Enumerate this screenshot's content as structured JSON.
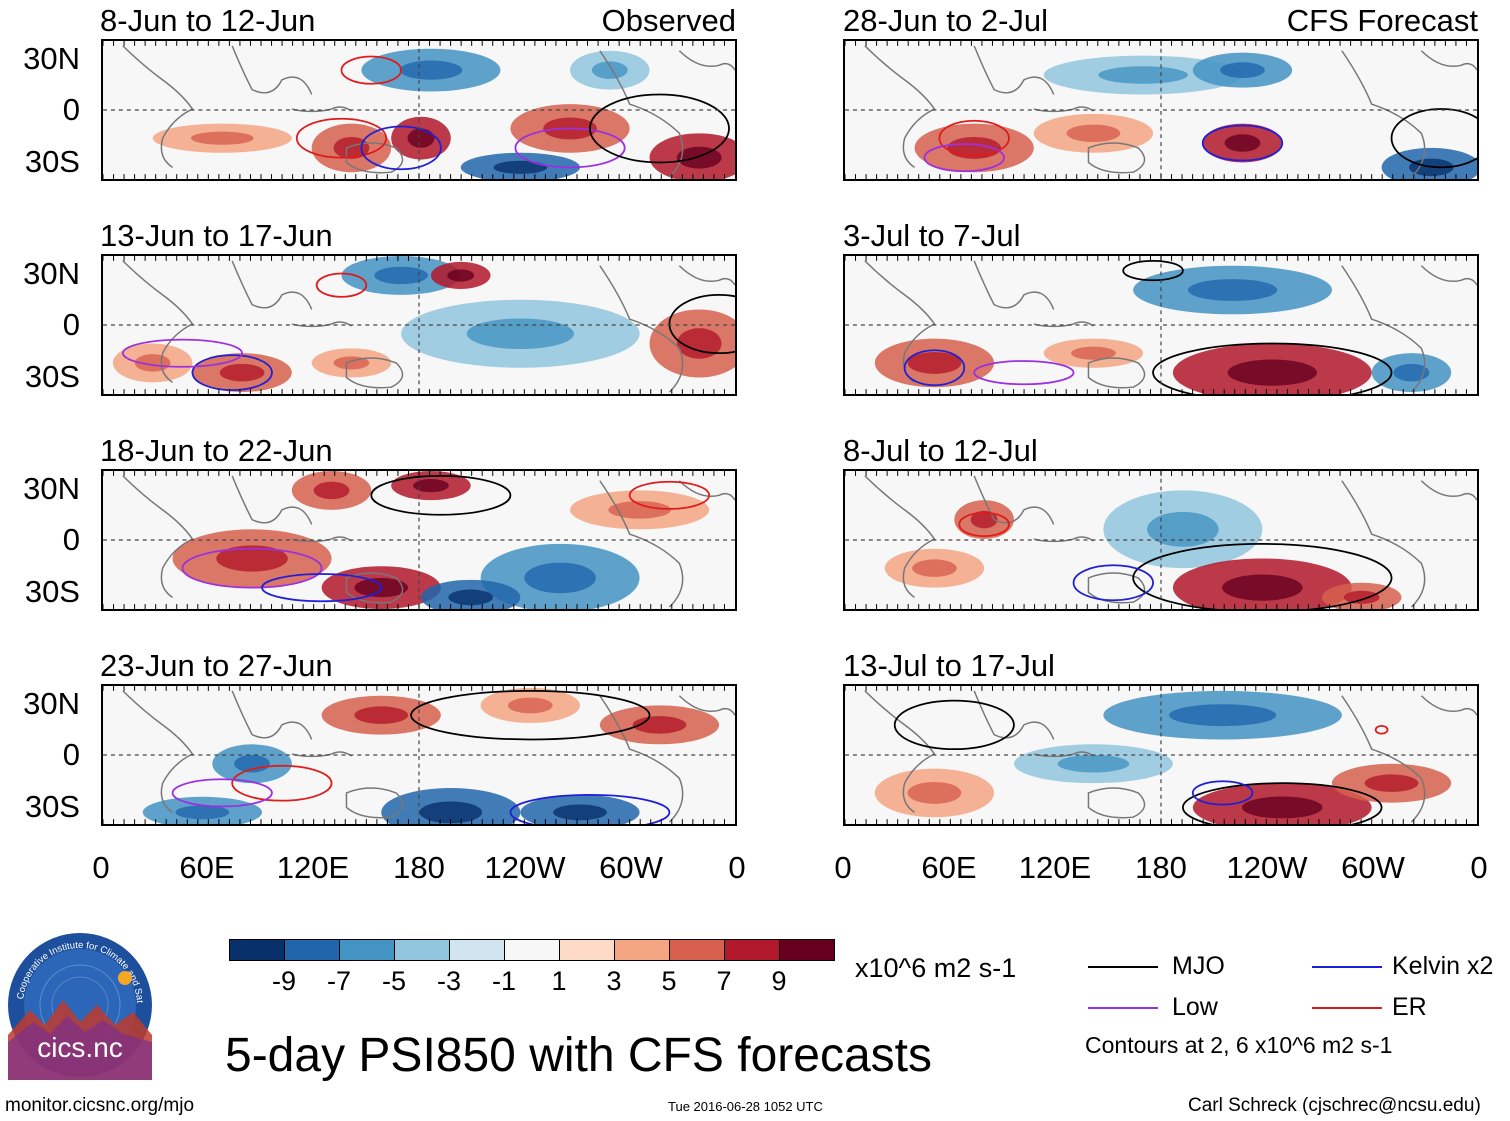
{
  "panels": [
    {
      "title": "8-Jun to 12-Jun",
      "tag": "Observed"
    },
    {
      "title": "13-Jun to 17-Jun",
      "tag": ""
    },
    {
      "title": "18-Jun to 22-Jun",
      "tag": ""
    },
    {
      "title": "23-Jun to 27-Jun",
      "tag": ""
    },
    {
      "title": "28-Jun to 2-Jul",
      "tag": "CFS Forecast"
    },
    {
      "title": "3-Jul to 7-Jul",
      "tag": ""
    },
    {
      "title": "8-Jul to 12-Jul",
      "tag": ""
    },
    {
      "title": "13-Jul to 17-Jul",
      "tag": ""
    }
  ],
  "lat_labels": [
    "30N",
    "0",
    "30S"
  ],
  "lon_labels": [
    "0",
    "60E",
    "120E",
    "180",
    "120W",
    "60W",
    "0"
  ],
  "colorbar": {
    "colors": [
      "#08306b",
      "#2166ac",
      "#4393c3",
      "#92c5de",
      "#d1e5f0",
      "#f7f7f7",
      "#fddbc7",
      "#f4a582",
      "#d6604d",
      "#b2182b",
      "#67001f"
    ],
    "labels": [
      "-9",
      "-7",
      "-5",
      "-3",
      "-1",
      "1",
      "3",
      "5",
      "7",
      "9"
    ],
    "units": "x10^6 m2 s-1"
  },
  "legend": {
    "items": [
      {
        "label": "MJO",
        "color": "#000000"
      },
      {
        "label": "Kelvin x2",
        "color": "#1f1fd6"
      },
      {
        "label": "Low",
        "color": "#9b30e0"
      },
      {
        "label": "ER",
        "color": "#e01b1b"
      }
    ],
    "note": "Contours at 2, 6 x10^6 m2 s-1"
  },
  "logo_text": "cics.nc",
  "logo_ring_text": "Cooperative Institute for Climate and Satellites",
  "main_title": "5-day PSI850 with CFS forecasts",
  "footer": {
    "left": "monitor.cicsnc.org/mjo",
    "center": "Tue 2016-06-28 1052 UTC",
    "right": "Carl Schreck (cjschrec@ncsu.edu)"
  }
}
